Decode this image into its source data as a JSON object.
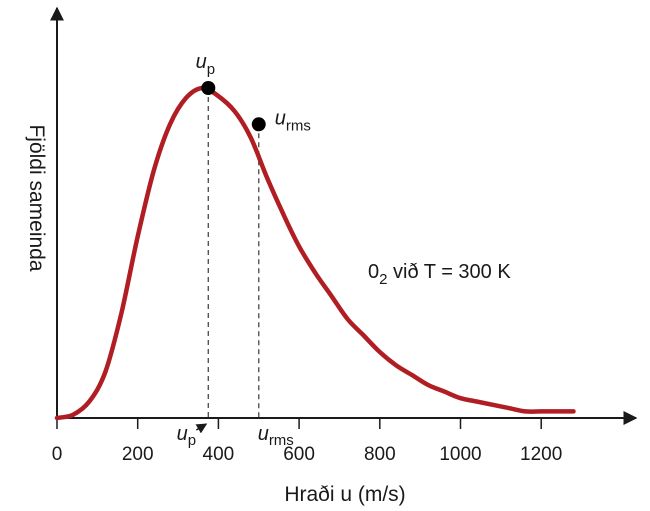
{
  "chart_data": {
    "type": "line",
    "title": "",
    "xlabel": "Hraði u (m/s)",
    "ylabel": "Fjöldi sameinda",
    "xlim": [
      0,
      1400
    ],
    "x_ticks": [
      0,
      200,
      400,
      600,
      800,
      1000,
      1200
    ],
    "x_tick_labels": [
      "0",
      "200",
      "400",
      "600",
      "800",
      "1000",
      "1200"
    ],
    "y_ticks": [],
    "grid": false,
    "legend": "none",
    "series": [
      {
        "color": "#b01e23",
        "x": [
          0,
          40,
          80,
          120,
          160,
          200,
          240,
          280,
          320,
          360,
          395,
          440,
          480,
          520,
          560,
          600,
          640,
          680,
          720,
          760,
          800,
          840,
          880,
          920,
          960,
          1000,
          1040,
          1080,
          1120,
          1160,
          1200,
          1240,
          1280
        ],
        "y": [
          0.0,
          0.01,
          0.05,
          0.14,
          0.32,
          0.55,
          0.75,
          0.89,
          0.97,
          1.0,
          0.98,
          0.93,
          0.85,
          0.73,
          0.62,
          0.52,
          0.44,
          0.37,
          0.3,
          0.25,
          0.2,
          0.16,
          0.13,
          0.1,
          0.08,
          0.06,
          0.05,
          0.04,
          0.03,
          0.02,
          0.02,
          0.02,
          0.02
        ]
      }
    ],
    "points": [
      {
        "symbol": "u",
        "subscript": "p",
        "x": 375,
        "y": 1.0
      },
      {
        "symbol": "u",
        "subscript": "rms",
        "x": 500,
        "y": 0.89
      }
    ],
    "axis_markers": [
      {
        "symbol": "u",
        "subscript": "p",
        "x": 375
      },
      {
        "symbol": "u",
        "subscript": "rms",
        "x": 500
      }
    ],
    "annotation": {
      "prefix": "0",
      "subscript": "2",
      "suffix": " við T = 300 K"
    }
  }
}
